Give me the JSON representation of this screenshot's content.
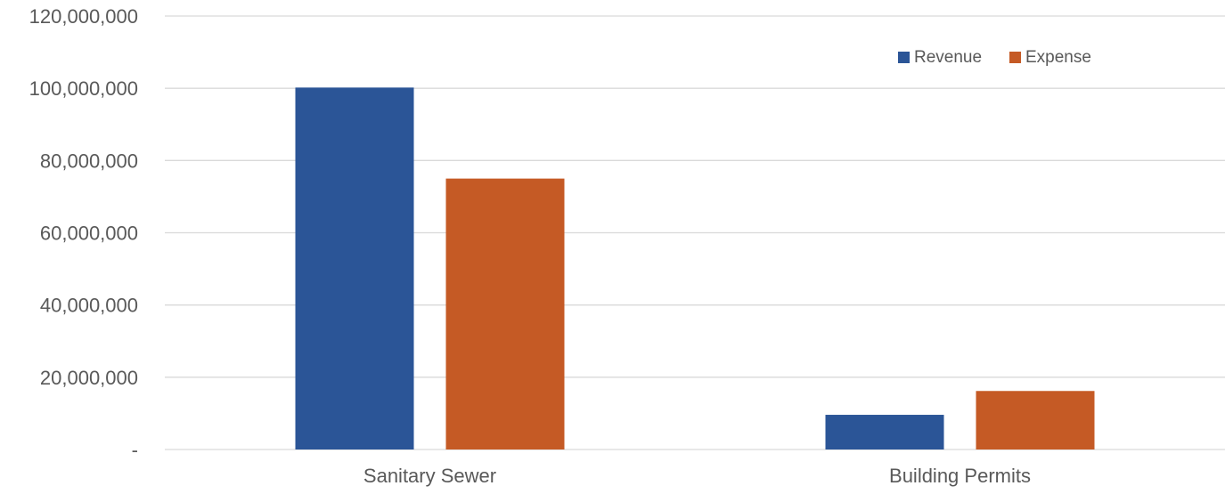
{
  "chart_data": {
    "type": "bar",
    "categories": [
      "Sanitary Sewer",
      "Building Permits"
    ],
    "series": [
      {
        "name": "Revenue",
        "values": [
          100200000,
          9600000
        ]
      },
      {
        "name": "Expense",
        "values": [
          75000000,
          16200000
        ]
      }
    ],
    "title": "",
    "xlabel": "",
    "ylabel": "",
    "ylim": [
      0,
      120000000
    ],
    "y_ticks": [
      0,
      20000000,
      40000000,
      60000000,
      80000000,
      100000000,
      120000000
    ],
    "y_tick_labels": [
      "-",
      "20,000,000",
      "40,000,000",
      "60,000,000",
      "80,000,000",
      "100,000,000",
      "120,000,000"
    ],
    "grid": true,
    "legend_position": "top-right",
    "colors": {
      "Revenue": "#2b5597",
      "Expense": "#c55a25",
      "grid": "#d9d9d9",
      "text": "#595959"
    }
  }
}
